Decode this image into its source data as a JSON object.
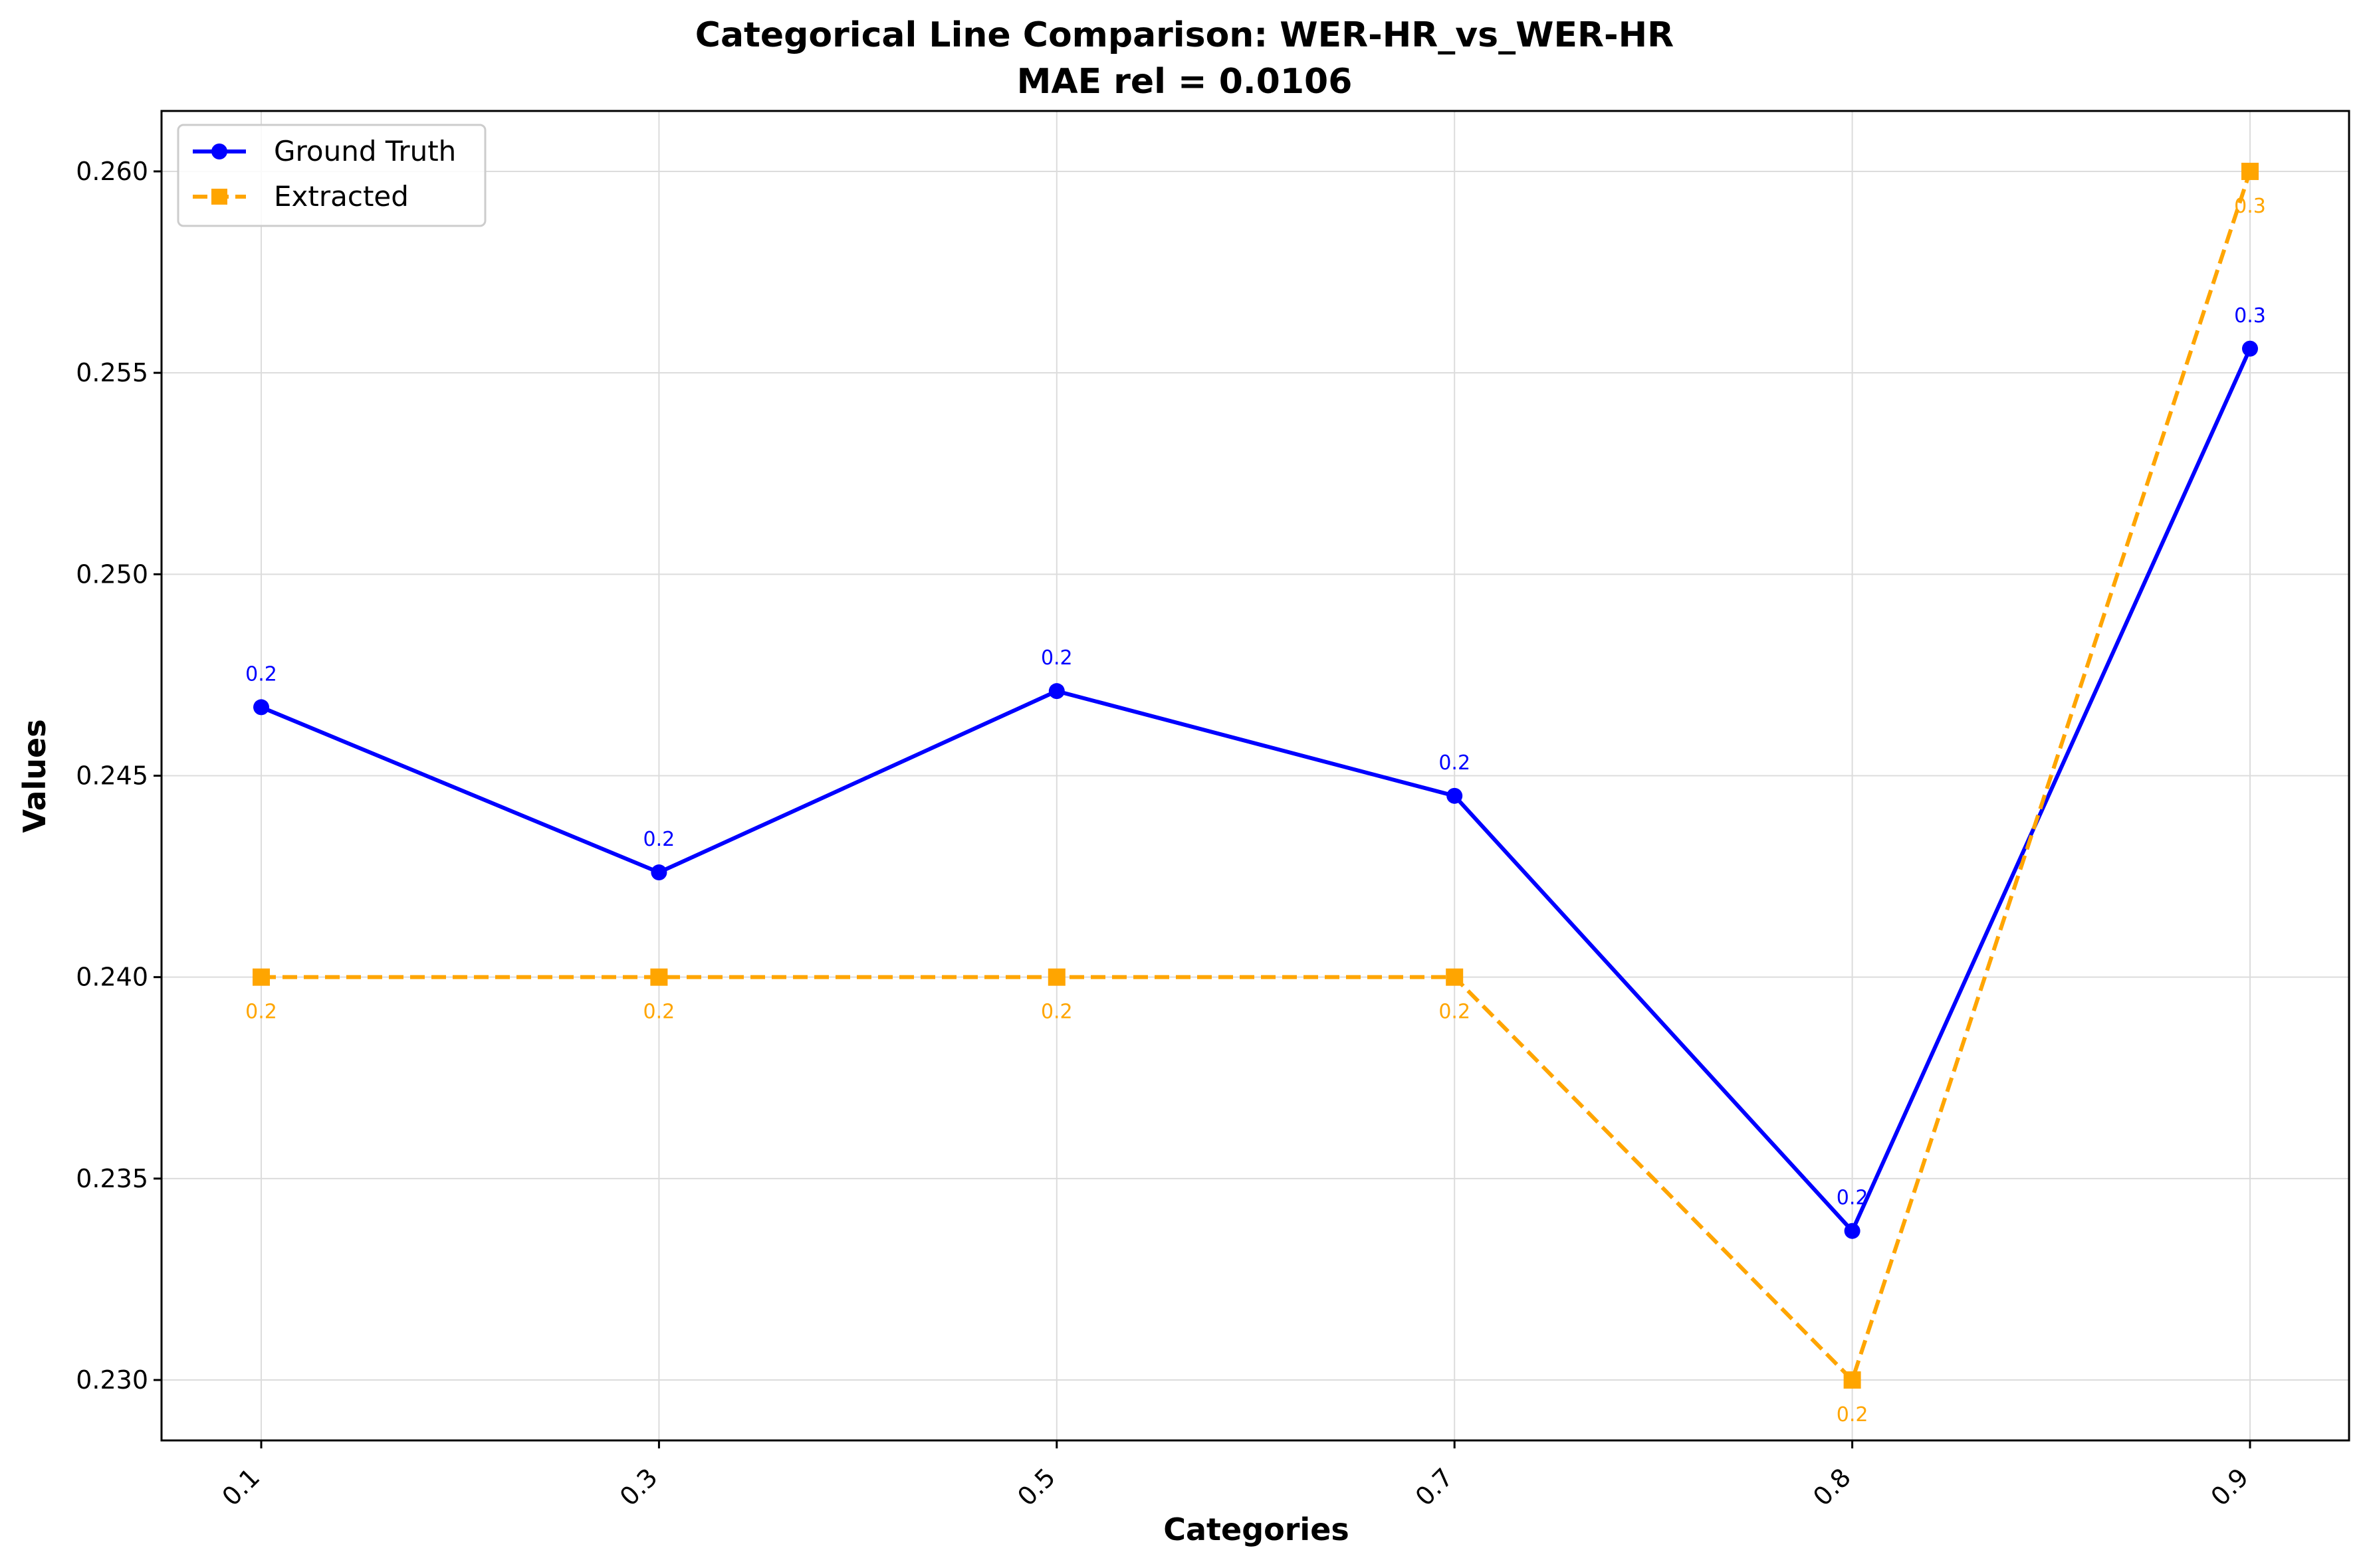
{
  "chart_data": {
    "type": "line",
    "title_line1": "Categorical Line Comparison: WER-HR_vs_WER-HR",
    "title_line2": "MAE rel = 0.0106",
    "xlabel": "Categories",
    "ylabel": "Values",
    "categories": [
      "0.1",
      "0.3",
      "0.5",
      "0.7",
      "0.8",
      "0.9"
    ],
    "ylim": [
      0.2285,
      0.2615
    ],
    "yticks": [
      0.23,
      0.235,
      0.24,
      0.245,
      0.25,
      0.255,
      0.26
    ],
    "ytick_labels": [
      "0.230",
      "0.235",
      "0.240",
      "0.245",
      "0.250",
      "0.255",
      "0.260"
    ],
    "grid": true,
    "legend_position": "top-left",
    "series": [
      {
        "name": "Ground Truth",
        "color": "#0000ff",
        "marker": "circle",
        "line_style": "solid",
        "values": [
          0.2467,
          0.2426,
          0.2471,
          0.2445,
          0.2337,
          0.2556
        ],
        "labels": [
          "0.2",
          "0.2",
          "0.2",
          "0.2",
          "0.2",
          "0.3"
        ]
      },
      {
        "name": "Extracted",
        "color": "#ffa500",
        "marker": "square",
        "line_style": "dashed",
        "values": [
          0.24,
          0.24,
          0.24,
          0.24,
          0.23,
          0.26
        ],
        "labels": [
          "0.2",
          "0.2",
          "0.2",
          "0.2",
          "0.2",
          "0.3"
        ]
      }
    ]
  }
}
